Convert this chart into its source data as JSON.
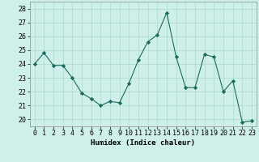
{
  "x": [
    0,
    1,
    2,
    3,
    4,
    5,
    6,
    7,
    8,
    9,
    10,
    11,
    12,
    13,
    14,
    15,
    16,
    17,
    18,
    19,
    20,
    21,
    22,
    23
  ],
  "y": [
    24.0,
    24.8,
    23.9,
    23.9,
    23.0,
    21.9,
    21.5,
    21.0,
    21.3,
    21.2,
    22.6,
    24.3,
    25.6,
    26.1,
    27.7,
    24.5,
    22.3,
    22.3,
    24.7,
    24.5,
    22.0,
    22.8,
    19.8,
    19.9
  ],
  "xlabel": "Humidex (Indice chaleur)",
  "ylim": [
    19.5,
    28.5
  ],
  "xlim": [
    -0.5,
    23.5
  ],
  "yticks": [
    20,
    21,
    22,
    23,
    24,
    25,
    26,
    27,
    28
  ],
  "xticks": [
    0,
    1,
    2,
    3,
    4,
    5,
    6,
    7,
    8,
    9,
    10,
    11,
    12,
    13,
    14,
    15,
    16,
    17,
    18,
    19,
    20,
    21,
    22,
    23
  ],
  "line_color": "#1a6b5a",
  "marker": "D",
  "marker_size": 2.2,
  "bg_color": "#cff0ea",
  "grid_color": "#aad8d0",
  "xlabel_fontsize": 6.5,
  "tick_fontsize": 6.0
}
